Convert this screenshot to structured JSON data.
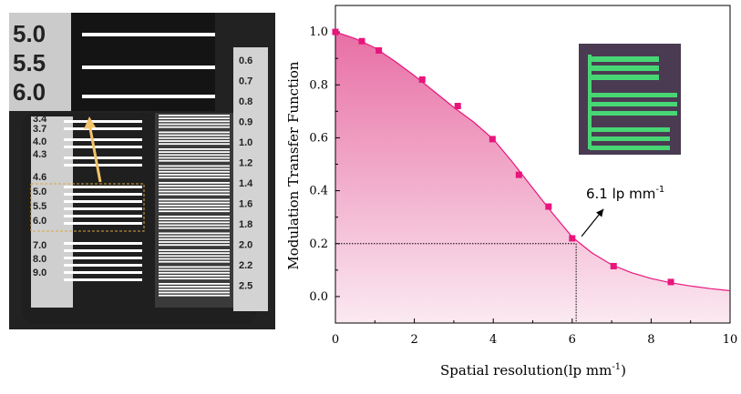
{
  "target_photo": {
    "inset_labels": [
      "5.0",
      "5.5",
      "6.0"
    ],
    "left_labels": [
      "3.4",
      "3.7",
      "4.0",
      "4.3",
      "4.6",
      "5.0",
      "5.5",
      "6.0",
      "7.0",
      "8.0",
      "9.0"
    ],
    "right_labels": [
      "0.6",
      "0.7",
      "0.8",
      "0.9",
      "1.0",
      "1.2",
      "1.4",
      "1.6",
      "1.8",
      "2.0",
      "2.2",
      "2.5"
    ],
    "colors": {
      "background": "#2b2b2b",
      "card": "#d7d7d7",
      "bars": "#ffffff",
      "arrow": "#f2c46a",
      "highlight_box": "#d8a640"
    }
  },
  "chart_data": {
    "type": "line",
    "title": "",
    "xlabel": "Spatial resolution(lp mm",
    "xlabel_superscript": "-1",
    "xlabel_tail": ")",
    "ylabel": "Modulation Transfer Function",
    "xlim": [
      0,
      10
    ],
    "ylim": [
      -0.1,
      1.1
    ],
    "xticks": [
      "0",
      "2",
      "4",
      "6",
      "8",
      "10"
    ],
    "yticks": [
      "0.0",
      "0.2",
      "0.4",
      "0.6",
      "0.8",
      "1.0"
    ],
    "markers": {
      "x": [
        0,
        0.67,
        1.1,
        2.2,
        3.1,
        3.98,
        4.65,
        5.4,
        6.0,
        7.05,
        8.5
      ],
      "y": [
        1.0,
        0.965,
        0.93,
        0.82,
        0.72,
        0.595,
        0.46,
        0.34,
        0.22,
        0.115,
        0.055
      ]
    },
    "curve": {
      "x": [
        0,
        0.5,
        1.0,
        1.5,
        2.0,
        2.5,
        3.0,
        3.5,
        4.0,
        4.5,
        5.0,
        5.5,
        6.0,
        6.5,
        7.0,
        7.5,
        8.0,
        8.5,
        9.0,
        9.5,
        10.0
      ],
      "y": [
        1.0,
        0.975,
        0.94,
        0.89,
        0.835,
        0.775,
        0.715,
        0.66,
        0.595,
        0.505,
        0.41,
        0.315,
        0.225,
        0.165,
        0.12,
        0.09,
        0.068,
        0.052,
        0.04,
        0.03,
        0.022
      ]
    },
    "reference": {
      "x": 6.1,
      "y": 0.2
    },
    "annotation": {
      "text": "6.1 lp mm",
      "superscript": "-1"
    },
    "colors": {
      "marker": "#e8157c",
      "curve": "#e8157c",
      "fill_top": "#e86fa5",
      "fill_bottom": "#fbe9f1"
    },
    "inset": {
      "colors": {
        "background": "#4a3b52",
        "bars": "#48d675"
      }
    }
  }
}
